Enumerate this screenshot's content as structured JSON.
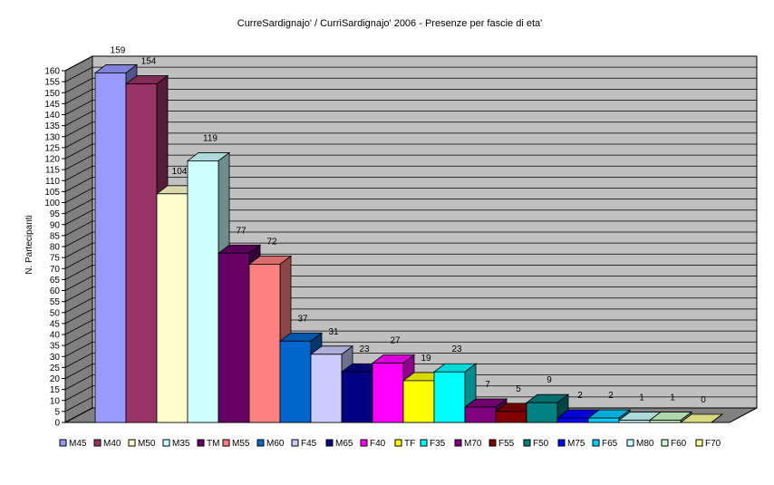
{
  "chart_data": {
    "type": "bar",
    "title": "CurreSardignajo' / CurriSardignajo' 2006 - Presenze per fascie di eta'",
    "ylabel": "N. Partecipanti",
    "xlabel": "",
    "ylim": [
      0,
      160
    ],
    "ytick_step": 5,
    "grid": true,
    "three_d": true,
    "legend_position": "bottom",
    "series": [
      {
        "name": "M45",
        "value": 159,
        "color": "#9999ff"
      },
      {
        "name": "M40",
        "value": 154,
        "color": "#993366"
      },
      {
        "name": "M50",
        "value": 104,
        "color": "#ffffcc"
      },
      {
        "name": "M35",
        "value": 119,
        "color": "#ccffff"
      },
      {
        "name": "TM",
        "value": 77,
        "color": "#660066"
      },
      {
        "name": "M55",
        "value": 72,
        "color": "#ff8080"
      },
      {
        "name": "M60",
        "value": 37,
        "color": "#0066cc"
      },
      {
        "name": "F45",
        "value": 31,
        "color": "#ccccff"
      },
      {
        "name": "M65",
        "value": 23,
        "color": "#000080"
      },
      {
        "name": "F40",
        "value": 27,
        "color": "#ff00ff"
      },
      {
        "name": "TF",
        "value": 19,
        "color": "#ffff00"
      },
      {
        "name": "F35",
        "value": 23,
        "color": "#00ffff"
      },
      {
        "name": "M70",
        "value": 7,
        "color": "#800080"
      },
      {
        "name": "F55",
        "value": 5,
        "color": "#800000"
      },
      {
        "name": "F50",
        "value": 9,
        "color": "#008080"
      },
      {
        "name": "M75",
        "value": 2,
        "color": "#0000ff"
      },
      {
        "name": "F65",
        "value": 2,
        "color": "#00ccff"
      },
      {
        "name": "M80",
        "value": 1,
        "color": "#ccffff"
      },
      {
        "name": "F60",
        "value": 1,
        "color": "#ccffcc"
      },
      {
        "name": "F70",
        "value": 0,
        "color": "#ffff99"
      }
    ],
    "wall_color": "#c0c0c0",
    "floor_color": "#808080"
  }
}
